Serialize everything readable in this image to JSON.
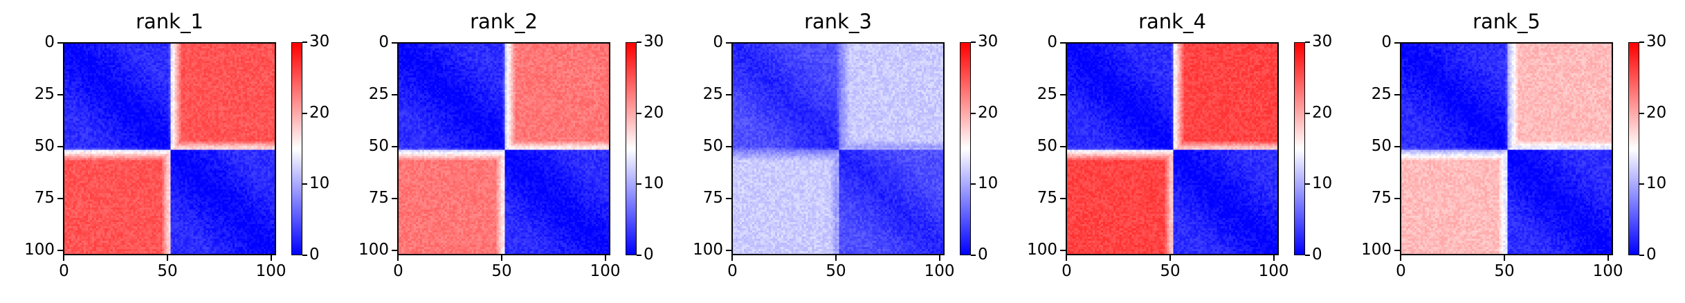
{
  "figure": {
    "panels": [
      {
        "id": "rank_1",
        "title": "rank_1"
      },
      {
        "id": "rank_2",
        "title": "rank_2"
      },
      {
        "id": "rank_3",
        "title": "rank_3"
      },
      {
        "id": "rank_4",
        "title": "rank_4"
      },
      {
        "id": "rank_5",
        "title": "rank_5"
      }
    ]
  },
  "chart_data": [
    {
      "type": "heatmap",
      "title": "rank_1",
      "matrix_size": 103,
      "block_boundary": 52,
      "x_ticks": [
        0,
        50,
        100
      ],
      "y_ticks": [
        0,
        25,
        50,
        75,
        100
      ],
      "colorbar": {
        "min": 0,
        "max": 30,
        "ticks": [
          0,
          10,
          20,
          30
        ],
        "colormap": "bwr"
      },
      "within_block_value": 0,
      "between_block_value": 25
    },
    {
      "type": "heatmap",
      "title": "rank_2",
      "matrix_size": 103,
      "block_boundary": 52,
      "x_ticks": [
        0,
        50,
        100
      ],
      "y_ticks": [
        0,
        25,
        50,
        75,
        100
      ],
      "colorbar": {
        "min": 0,
        "max": 30,
        "ticks": [
          0,
          10,
          20,
          30
        ],
        "colormap": "bwr"
      },
      "within_block_value": 0,
      "between_block_value": 23
    },
    {
      "type": "heatmap",
      "title": "rank_3",
      "matrix_size": 103,
      "block_boundary": 52,
      "x_ticks": [
        0,
        50,
        100
      ],
      "y_ticks": [
        0,
        25,
        50,
        75,
        100
      ],
      "colorbar": {
        "min": 0,
        "max": 30,
        "ticks": [
          0,
          10,
          20,
          30
        ],
        "colormap": "bwr"
      },
      "within_block_value": 2,
      "between_block_value": 12
    },
    {
      "type": "heatmap",
      "title": "rank_4",
      "matrix_size": 103,
      "block_boundary": 52,
      "x_ticks": [
        0,
        50,
        100
      ],
      "y_ticks": [
        0,
        25,
        50,
        75,
        100
      ],
      "colorbar": {
        "min": 0,
        "max": 30,
        "ticks": [
          0,
          10,
          20,
          30
        ],
        "colormap": "bwr"
      },
      "within_block_value": 0,
      "between_block_value": 26
    },
    {
      "type": "heatmap",
      "title": "rank_5",
      "matrix_size": 103,
      "block_boundary": 52,
      "x_ticks": [
        0,
        50,
        100
      ],
      "y_ticks": [
        0,
        25,
        50,
        75,
        100
      ],
      "colorbar": {
        "min": 0,
        "max": 30,
        "ticks": [
          0,
          10,
          20,
          30
        ],
        "colormap": "bwr"
      },
      "within_block_value": 0,
      "between_block_value": 19
    }
  ]
}
